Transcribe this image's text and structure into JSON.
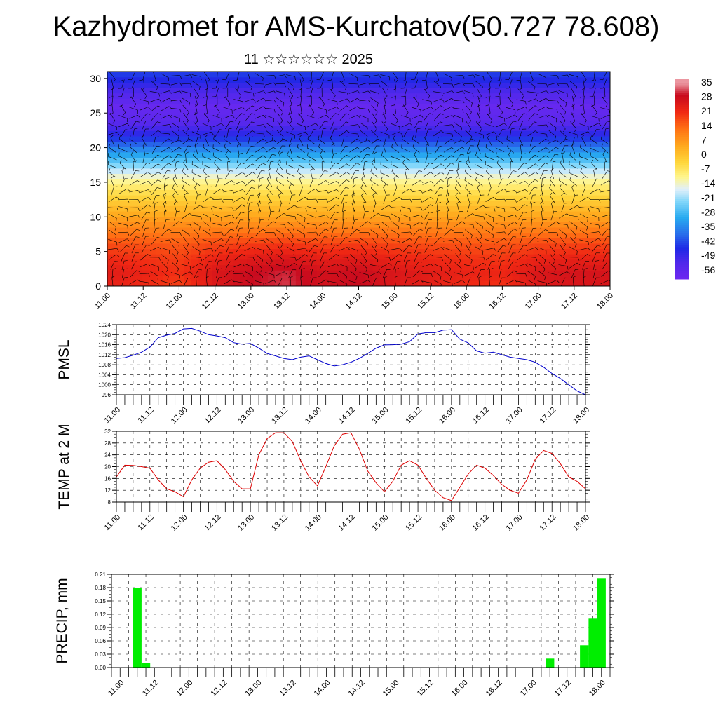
{
  "title": "Kazhydromet for AMS-Kurchatov(50.727 78.608)",
  "subtitle": "11 ☆☆☆☆☆☆ 2025",
  "colors": {
    "pmsl_line": "#0000cc",
    "temp_line": "#dd0000",
    "precip_bar": "#00ee00",
    "wind_barb": "#000000",
    "grid": "#000000"
  },
  "chart_data": [
    {
      "id": "cross_section",
      "type": "heatmap",
      "xlabel": "",
      "ylabel": "",
      "x_tick_labels": [
        "11.00",
        "11.12",
        "12.00",
        "12.12",
        "13.00",
        "13.12",
        "14.00",
        "14.12",
        "15.00",
        "15.12",
        "16.00",
        "16.12",
        "17.00",
        "17.12",
        "18.00"
      ],
      "y_ticks": [
        0,
        5,
        10,
        15,
        20,
        25,
        30
      ],
      "ylim": [
        0,
        31
      ],
      "xlim": [
        0,
        14
      ],
      "colorbar_labels": [
        "35",
        "28",
        "21",
        "14",
        "7",
        "0",
        "-7",
        "-14",
        "-21",
        "-28",
        "-35",
        "-42",
        "-49",
        "-56"
      ],
      "colorbar_range": [
        -60,
        38
      ],
      "overlay": "wind-barbs",
      "temp_profile_by_height": {
        "heights": [
          0,
          2,
          4,
          6,
          8,
          10,
          12,
          14,
          16,
          18,
          20,
          22,
          24,
          26,
          28,
          30,
          31
        ],
        "values": [
          24,
          25,
          22,
          18,
          12,
          6,
          0,
          -6,
          -14,
          -25,
          -36,
          -47,
          -55,
          -58,
          -52,
          -45,
          -42
        ]
      },
      "surface_anomaly_by_time": {
        "x": [
          0,
          1,
          2,
          3,
          4,
          5,
          6,
          7,
          8,
          9,
          10,
          11,
          12,
          13,
          14
        ],
        "values": [
          0,
          -2,
          -5,
          2,
          6,
          8,
          4,
          6,
          2,
          0,
          -2,
          -3,
          2,
          3,
          3
        ]
      }
    },
    {
      "id": "pmsl",
      "type": "line",
      "ylabel": "PMSL",
      "xlabel": "",
      "x_tick_labels": [
        "11.00",
        "11.12",
        "12.00",
        "12.12",
        "13.00",
        "13.12",
        "14.00",
        "14.12",
        "15.00",
        "15.12",
        "16.00",
        "16.12",
        "17.00",
        "17.12",
        "18.00"
      ],
      "y_tick_labels": [
        "1024",
        "1020",
        "1016",
        "1012",
        "1008",
        "1004",
        "1000",
        "996"
      ],
      "ylim": [
        996,
        1024
      ],
      "xlim": [
        0,
        14
      ],
      "grid": true,
      "series": [
        {
          "x": [
            0,
            0.25,
            0.5,
            0.75,
            1,
            1.25,
            1.5,
            1.75,
            2,
            2.25,
            2.5,
            2.75,
            3,
            3.25,
            3.5,
            3.75,
            4,
            4.25,
            4.5,
            4.75,
            5,
            5.25,
            5.5,
            5.75,
            6,
            6.25,
            6.5,
            6.75,
            7,
            7.25,
            7.5,
            7.75,
            8,
            8.25,
            8.5,
            8.75,
            9,
            9.25,
            9.5,
            9.75,
            10,
            10.25,
            10.5,
            10.75,
            11,
            11.25,
            11.5,
            11.75,
            12,
            12.25,
            12.5,
            12.75,
            13,
            13.25,
            13.5,
            13.75,
            14
          ],
          "values": [
            1010.5,
            1010.8,
            1011.8,
            1013,
            1015,
            1018.8,
            1019.8,
            1020.5,
            1022.3,
            1022.5,
            1021.4,
            1020,
            1019.5,
            1018.8,
            1016.8,
            1016.2,
            1016.5,
            1014.6,
            1012.5,
            1011.5,
            1010.5,
            1010,
            1011,
            1011.5,
            1010,
            1008.5,
            1007.5,
            1008,
            1009,
            1010.5,
            1012.5,
            1014.6,
            1015.9,
            1016,
            1016.2,
            1017.2,
            1020.3,
            1020.8,
            1020.8,
            1021.8,
            1022,
            1018.2,
            1016.7,
            1013.5,
            1012.6,
            1013,
            1012,
            1011,
            1010.5,
            1010,
            1009,
            1007,
            1004.5,
            1002.5,
            1000,
            997.5,
            996
          ]
        }
      ]
    },
    {
      "id": "temp",
      "type": "line",
      "ylabel": "TEMP at 2 M",
      "xlabel": "",
      "x_tick_labels": [
        "11.00",
        "11.12",
        "12.00",
        "12.12",
        "13.00",
        "13.12",
        "14.00",
        "14.12",
        "15.00",
        "15.12",
        "16.00",
        "16.12",
        "17.00",
        "17.12",
        "18.00"
      ],
      "y_tick_labels": [
        "32",
        "28",
        "24",
        "20",
        "16",
        "12",
        "8"
      ],
      "ylim": [
        8,
        32
      ],
      "xlim": [
        0,
        14
      ],
      "grid": true,
      "series": [
        {
          "x": [
            0,
            0.25,
            0.5,
            0.75,
            1,
            1.25,
            1.5,
            1.75,
            2,
            2.25,
            2.5,
            2.75,
            3,
            3.25,
            3.5,
            3.75,
            4,
            4.25,
            4.5,
            4.75,
            5,
            5.25,
            5.5,
            5.75,
            6,
            6.25,
            6.5,
            6.75,
            7,
            7.25,
            7.5,
            7.75,
            8,
            8.25,
            8.5,
            8.75,
            9,
            9.25,
            9.5,
            9.75,
            10,
            10.25,
            10.5,
            10.75,
            11,
            11.25,
            11.5,
            11.75,
            12,
            12.25,
            12.5,
            12.75,
            13,
            13.25,
            13.5,
            13.75,
            14
          ],
          "values": [
            16.5,
            20.5,
            20.4,
            20,
            19.5,
            15.5,
            12.5,
            11.5,
            9.8,
            15.5,
            19.5,
            21.5,
            22,
            19,
            15,
            12.5,
            12.5,
            24,
            29.5,
            31.5,
            31.5,
            28.5,
            22,
            16.5,
            13.5,
            20,
            27,
            31,
            31.5,
            26,
            18.5,
            14.5,
            11.5,
            15,
            20.5,
            22,
            20.5,
            16,
            12,
            9.5,
            8.5,
            13,
            17.5,
            20.5,
            19.5,
            17,
            14,
            12,
            11,
            15.5,
            22.5,
            25.5,
            24.5,
            21,
            16.5,
            15,
            12.5
          ]
        }
      ]
    },
    {
      "id": "precip",
      "type": "bar",
      "ylabel": "PRECIP, mm",
      "xlabel": "",
      "x_tick_labels": [
        "11.00",
        "11.12",
        "12.00",
        "12.12",
        "13.00",
        "13.12",
        "14.00",
        "14.12",
        "15.00",
        "15.12",
        "16.00",
        "16.12",
        "17.00",
        "17.12",
        "18.00"
      ],
      "y_tick_labels": [
        "0.21",
        "0.18",
        "0.15",
        "0.12",
        "0.09",
        "0.06",
        "0.03",
        "0.00"
      ],
      "ylim": [
        0,
        0.21
      ],
      "xlim": [
        -0.25,
        14.25
      ],
      "grid": true,
      "bars": [
        {
          "x": 0.5,
          "value": 0.18
        },
        {
          "x": 0.75,
          "value": 0.01
        },
        {
          "x": 12.5,
          "value": 0.02
        },
        {
          "x": 13.5,
          "value": 0.05
        },
        {
          "x": 13.75,
          "value": 0.11
        },
        {
          "x": 14.0,
          "value": 0.2
        }
      ]
    }
  ]
}
